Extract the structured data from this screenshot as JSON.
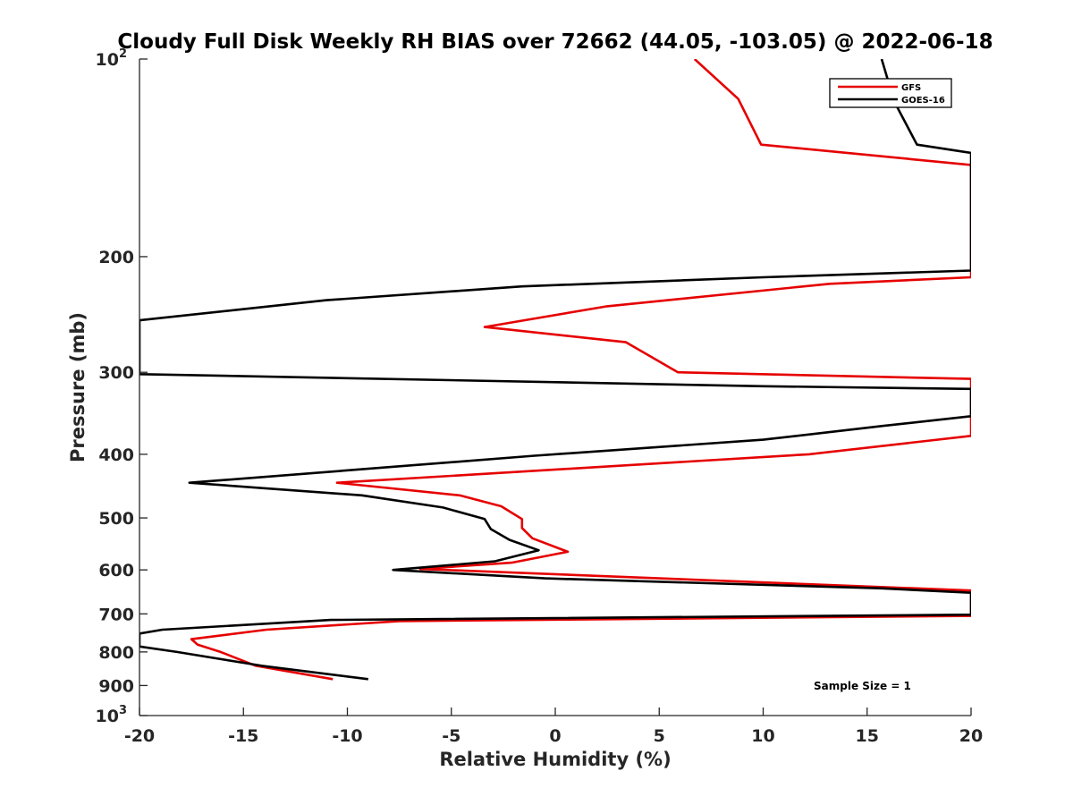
{
  "chart_data": {
    "type": "line",
    "title": "Cloudy Full Disk Weekly RH BIAS over 72662 (44.05, -103.05) @ 2022-06-18",
    "xlabel": "Relative Humidity (%)",
    "ylabel": "Pressure (mb)",
    "xlim": [
      -20,
      20
    ],
    "ylim": [
      100,
      1000
    ],
    "y_scale": "log",
    "y_reversed": true,
    "grid": false,
    "legend_position": "top-right",
    "x_ticks": [
      {
        "value": -20,
        "label": "-20"
      },
      {
        "value": -15,
        "label": "-15"
      },
      {
        "value": -10,
        "label": "-10"
      },
      {
        "value": -5,
        "label": "-5"
      },
      {
        "value": 0,
        "label": "0"
      },
      {
        "value": 5,
        "label": "5"
      },
      {
        "value": 10,
        "label": "10"
      },
      {
        "value": 15,
        "label": "15"
      },
      {
        "value": 20,
        "label": "20"
      }
    ],
    "y_ticks": [
      {
        "value": 100,
        "label": "10",
        "sup": "2"
      },
      {
        "value": 200,
        "label": "200",
        "sup": ""
      },
      {
        "value": 300,
        "label": "300",
        "sup": ""
      },
      {
        "value": 400,
        "label": "400",
        "sup": ""
      },
      {
        "value": 500,
        "label": "500",
        "sup": ""
      },
      {
        "value": 600,
        "label": "600",
        "sup": ""
      },
      {
        "value": 700,
        "label": "700",
        "sup": ""
      },
      {
        "value": 800,
        "label": "800",
        "sup": ""
      },
      {
        "value": 900,
        "label": "900",
        "sup": ""
      },
      {
        "value": 1000,
        "label": "10",
        "sup": "3"
      }
    ],
    "series": [
      {
        "name": "GFS",
        "color": "#e60000",
        "points": [
          [
            6.7,
            100
          ],
          [
            8.8,
            115
          ],
          [
            9.9,
            135
          ],
          [
            20,
            145
          ],
          [
            20,
            215
          ],
          [
            13.2,
            220
          ],
          [
            2.5,
            238
          ],
          [
            -3.4,
            256
          ],
          [
            3.4,
            270
          ],
          [
            5.9,
            300
          ],
          [
            20,
            307
          ],
          [
            20,
            375
          ],
          [
            12.2,
            400
          ],
          [
            -10.5,
            442
          ],
          [
            -4.6,
            462
          ],
          [
            -2.6,
            480
          ],
          [
            -1.6,
            502
          ],
          [
            -1.6,
            518
          ],
          [
            -1.1,
            537
          ],
          [
            0.6,
            563
          ],
          [
            -2.1,
            585
          ],
          [
            -6.5,
            598
          ],
          [
            20,
            645
          ],
          [
            20,
            705
          ],
          [
            -7.5,
            718
          ],
          [
            -13.9,
            740
          ],
          [
            -17.5,
            765
          ],
          [
            -17.2,
            780
          ],
          [
            -16.1,
            800
          ],
          [
            -14.4,
            840
          ],
          [
            -10.7,
            880
          ]
        ]
      },
      {
        "name": "GOES-16",
        "color": "#000000",
        "points": [
          [
            15.7,
            100
          ],
          [
            16.3,
            116
          ],
          [
            17.4,
            135
          ],
          [
            20,
            139
          ],
          [
            20,
            210
          ],
          [
            10,
            215
          ],
          [
            -1.6,
            222
          ],
          [
            -11,
            233
          ],
          [
            -20,
            250
          ],
          [
            -20,
            302
          ],
          [
            10,
            315
          ],
          [
            20,
            318
          ],
          [
            20,
            350
          ],
          [
            15.8,
            362
          ],
          [
            10,
            380
          ],
          [
            -1,
            402
          ],
          [
            -17.6,
            442
          ],
          [
            -9.3,
            462
          ],
          [
            -5.4,
            482
          ],
          [
            -3.4,
            502
          ],
          [
            -3.1,
            520
          ],
          [
            -2.2,
            540
          ],
          [
            -0.8,
            560
          ],
          [
            -2.9,
            582
          ],
          [
            -7.8,
            600
          ],
          [
            -0.5,
            618
          ],
          [
            15.6,
            640
          ],
          [
            20,
            650
          ],
          [
            20,
            702
          ],
          [
            -10.8,
            715
          ],
          [
            -18.9,
            740
          ],
          [
            -20,
            750
          ],
          [
            -20,
            785
          ],
          [
            -18.2,
            800
          ],
          [
            -14.1,
            840
          ],
          [
            -9,
            880
          ]
        ]
      }
    ],
    "annotations": [
      {
        "text": "Sample Size = 1"
      }
    ]
  }
}
